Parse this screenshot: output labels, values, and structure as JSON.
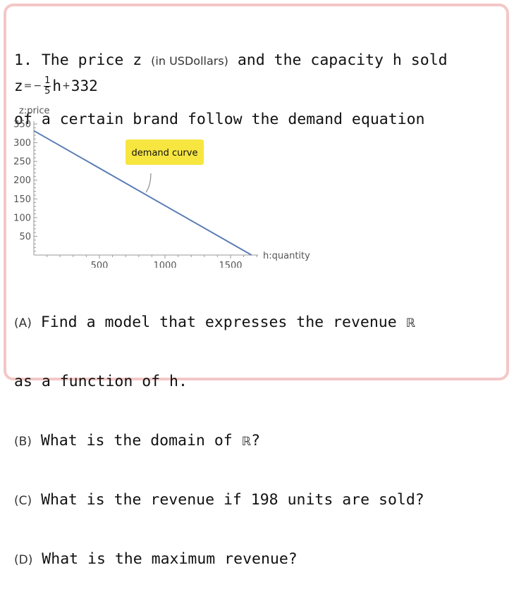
{
  "problem": {
    "line1_before": "1. The price z ",
    "line1_paren": "(in USDollars)",
    "line1_after": " and the capacity h sold",
    "line2": "of a certain brand follow the demand equation"
  },
  "equation": {
    "lhs": "z",
    "eq": "=",
    "minus": "−",
    "numerator": "1",
    "denominator": "5",
    "var": "h",
    "plus": "+",
    "constant": "332"
  },
  "chart_data": {
    "type": "line",
    "title": "",
    "xlabel": "h:quantity",
    "ylabel": "z:price",
    "xlim": [
      0,
      1700
    ],
    "ylim": [
      0,
      350
    ],
    "x_ticks": [
      500,
      1000,
      1500
    ],
    "y_ticks": [
      50,
      100,
      150,
      200,
      250,
      300,
      350
    ],
    "series": [
      {
        "name": "demand curve",
        "x": [
          0,
          1660
        ],
        "y": [
          332,
          0
        ],
        "color": "#5b7db5"
      }
    ],
    "annotation": {
      "text": "demand curve",
      "x": 860,
      "y": 160,
      "background": "#f7e640"
    },
    "grid": false
  },
  "questions": [
    {
      "label": "(A)",
      "text": " Find a model that expresses the revenue ",
      "symbol": "ℝ"
    },
    {
      "label": "",
      "text": "as a function of h.",
      "symbol": ""
    },
    {
      "label": "(B)",
      "text": " What is the domain of ",
      "symbol": "ℝ",
      "tail": "?"
    },
    {
      "label": "(C)",
      "text": " What is the revenue if 198 units are sold?",
      "symbol": ""
    },
    {
      "label": "(D)",
      "text": " What is the maximum revenue?",
      "symbol": ""
    }
  ]
}
